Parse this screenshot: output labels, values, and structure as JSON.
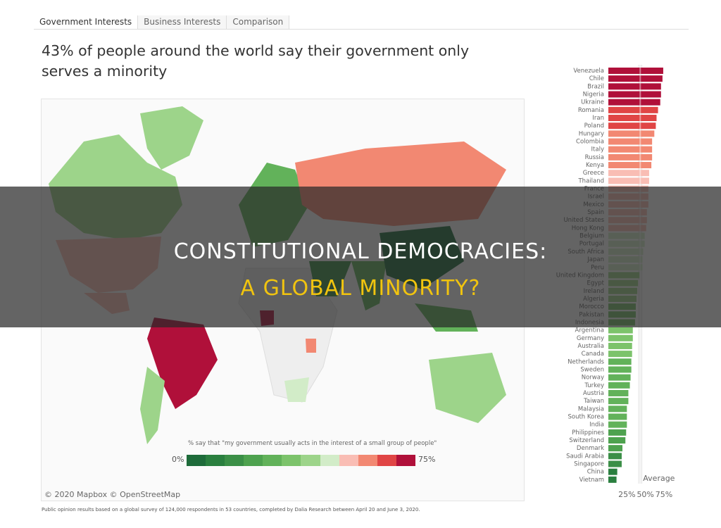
{
  "tabs": [
    "Government Interests",
    "Business Interests",
    "Comparison"
  ],
  "title": "43% of people around the world say their government only serves a minority",
  "map": {
    "attribution": "© 2020 Mapbox © OpenStreetMap",
    "legend_title": "% say that \"my government usually acts in the interest of a small group of people\"",
    "legend_min": "0%",
    "legend_max": "75%",
    "legend_colors": [
      "#1e6b3a",
      "#2a7f3f",
      "#3b8f47",
      "#4ea24f",
      "#62b25a",
      "#7cc36b",
      "#9dd48a",
      "#d2ecc8",
      "#f9bdb4",
      "#f28872",
      "#e04545",
      "#b0103a"
    ]
  },
  "footnote": "Public opinion results based on a global survey of 124,000 respondents in 53 countries, completed by Dalia Research between April 20 and June 3, 2020.",
  "overlay": {
    "line1": "CONSTITUTIONAL DEMOCRACIES:",
    "line2": "A GLOBAL MINORITY?"
  },
  "chart_data": {
    "type": "bar",
    "orientation": "horizontal",
    "xlim": [
      0,
      75
    ],
    "ticks": [
      "25%",
      "50%",
      "75%"
    ],
    "average_label": "Average",
    "average": 43,
    "categories": [
      "Venezuela",
      "Chile",
      "Brazil",
      "Nigeria",
      "Ukraine",
      "Romania",
      "Iran",
      "Poland",
      "Hungary",
      "Colombia",
      "Italy",
      "Russia",
      "Kenya",
      "Greece",
      "Thailand",
      "France",
      "Israel",
      "Mexico",
      "Spain",
      "United States",
      "Hong Kong",
      "Belgium",
      "Portugal",
      "South Africa",
      "Japan",
      "Peru",
      "United Kingdom",
      "Egypt",
      "Ireland",
      "Algeria",
      "Morocco",
      "Pakistan",
      "Indonesia",
      "Argentina",
      "Germany",
      "Australia",
      "Canada",
      "Netherlands",
      "Sweden",
      "Norway",
      "Turkey",
      "Austria",
      "Taiwan",
      "Malaysia",
      "South Korea",
      "India",
      "Philippines",
      "Switzerland",
      "Denmark",
      "Saudi Arabia",
      "Singapore",
      "China",
      "Vietnam"
    ],
    "values": [
      74,
      73,
      71,
      71,
      70,
      67,
      65,
      64,
      62,
      59,
      59,
      59,
      58,
      55,
      55,
      54,
      54,
      54,
      52,
      52,
      51,
      49,
      49,
      47,
      46,
      46,
      42,
      40,
      39,
      38,
      37,
      37,
      36,
      33,
      33,
      32,
      32,
      31,
      31,
      30,
      29,
      27,
      27,
      25,
      25,
      25,
      24,
      23,
      19,
      18,
      18,
      12,
      11
    ]
  }
}
